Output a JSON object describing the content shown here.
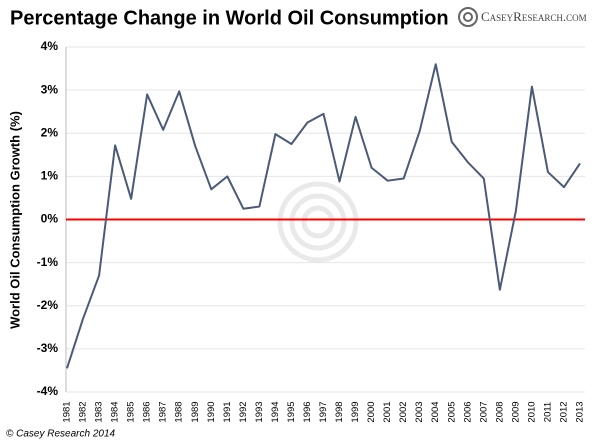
{
  "chart_data": {
    "type": "line",
    "title": "Percentage Change in World Oil Consumption",
    "logo": "CaseyResearch.com",
    "source": "© Casey Research 2014",
    "y_label": "World Oil Consumption Growth (%)",
    "categories": [
      "1981",
      "1982",
      "1983",
      "1984",
      "1985",
      "1986",
      "1987",
      "1988",
      "1989",
      "1990",
      "1991",
      "1992",
      "1993",
      "1994",
      "1995",
      "1996",
      "1997",
      "1998",
      "1999",
      "2000",
      "2001",
      "2002",
      "2003",
      "2004",
      "2005",
      "2006",
      "2007",
      "2008",
      "2009",
      "2010",
      "2011",
      "2012",
      "2013"
    ],
    "series": [
      {
        "name": "World Oil Consumption Growth",
        "color": "#4b5a78",
        "values": [
          -3.45,
          -2.3,
          -1.3,
          1.72,
          0.48,
          2.9,
          2.08,
          2.97,
          1.7,
          0.7,
          1.0,
          0.25,
          0.3,
          1.98,
          1.75,
          2.25,
          2.45,
          0.88,
          2.38,
          1.2,
          0.9,
          0.95,
          2.05,
          3.6,
          1.8,
          1.33,
          0.95,
          -1.63,
          0.2,
          3.08,
          1.1,
          0.75,
          1.3
        ]
      }
    ],
    "ylim": [
      -4,
      4
    ],
    "yticks": [
      {
        "value": -4,
        "label": "-4%"
      },
      {
        "value": -3,
        "label": "-3%"
      },
      {
        "value": -2,
        "label": "-2%"
      },
      {
        "value": -1,
        "label": "-1%"
      },
      {
        "value": 0,
        "label": "0%"
      },
      {
        "value": 1,
        "label": "1%"
      },
      {
        "value": 2,
        "label": "2%"
      },
      {
        "value": 3,
        "label": "3%"
      },
      {
        "value": 4,
        "label": "4%"
      }
    ],
    "grid": true,
    "reference_line": {
      "value": 0,
      "color": "#ff0000"
    }
  }
}
